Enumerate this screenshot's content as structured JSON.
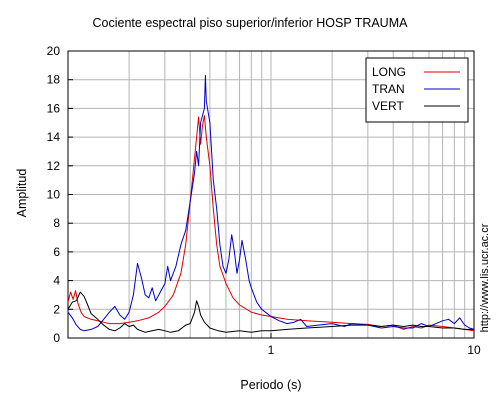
{
  "chart_data": {
    "type": "line",
    "title": "Cociente espectral piso superior/inferior  HOSP TRAUMA",
    "xlabel": "Periodo (s)",
    "ylabel": "Amplitud",
    "xscale": "log",
    "xlim": [
      0.1,
      10
    ],
    "ylim": [
      0,
      20
    ],
    "x_ticks": [
      {
        "value": 1,
        "label": "1"
      },
      {
        "value": 10,
        "label": "10"
      }
    ],
    "y_ticks": [
      0,
      2,
      4,
      6,
      8,
      10,
      12,
      14,
      16,
      18,
      20
    ],
    "grid": true,
    "legend_position": "top-right",
    "credit": "http://www.lis.ucr.ac.cr",
    "series": [
      {
        "name": "LONG",
        "color": "#e00000",
        "points": [
          [
            0.1,
            2.5
          ],
          [
            0.103,
            3.2
          ],
          [
            0.106,
            2.7
          ],
          [
            0.109,
            3.3
          ],
          [
            0.112,
            2.4
          ],
          [
            0.116,
            1.8
          ],
          [
            0.12,
            1.5
          ],
          [
            0.13,
            1.3
          ],
          [
            0.14,
            1.2
          ],
          [
            0.15,
            1.1
          ],
          [
            0.16,
            1.0
          ],
          [
            0.18,
            1.0
          ],
          [
            0.2,
            1.1
          ],
          [
            0.22,
            1.2
          ],
          [
            0.25,
            1.4
          ],
          [
            0.28,
            1.8
          ],
          [
            0.3,
            2.2
          ],
          [
            0.33,
            3.0
          ],
          [
            0.36,
            4.5
          ],
          [
            0.38,
            6.5
          ],
          [
            0.4,
            9.5
          ],
          [
            0.42,
            12.5
          ],
          [
            0.44,
            15.4
          ],
          [
            0.45,
            13.5
          ],
          [
            0.46,
            14.8
          ],
          [
            0.47,
            15.5
          ],
          [
            0.48,
            14.0
          ],
          [
            0.5,
            12.0
          ],
          [
            0.52,
            9.0
          ],
          [
            0.54,
            6.5
          ],
          [
            0.56,
            5.0
          ],
          [
            0.6,
            3.8
          ],
          [
            0.65,
            2.8
          ],
          [
            0.7,
            2.3
          ],
          [
            0.8,
            1.8
          ],
          [
            0.9,
            1.6
          ],
          [
            1.0,
            1.5
          ],
          [
            1.2,
            1.3
          ],
          [
            1.5,
            1.2
          ],
          [
            2.0,
            1.1
          ],
          [
            2.5,
            1.0
          ],
          [
            3.0,
            0.95
          ],
          [
            3.5,
            0.8
          ],
          [
            4.0,
            0.9
          ],
          [
            4.5,
            0.6
          ],
          [
            5.0,
            0.8
          ],
          [
            5.5,
            0.7
          ],
          [
            6.0,
            0.9
          ],
          [
            7.0,
            0.8
          ],
          [
            8.0,
            0.7
          ],
          [
            9.0,
            0.6
          ],
          [
            10.0,
            0.5
          ]
        ]
      },
      {
        "name": "TRAN",
        "color": "#0000cc",
        "points": [
          [
            0.1,
            1.8
          ],
          [
            0.105,
            1.4
          ],
          [
            0.11,
            0.9
          ],
          [
            0.115,
            0.6
          ],
          [
            0.12,
            0.5
          ],
          [
            0.13,
            0.6
          ],
          [
            0.14,
            0.8
          ],
          [
            0.15,
            1.3
          ],
          [
            0.16,
            1.8
          ],
          [
            0.17,
            2.2
          ],
          [
            0.18,
            1.6
          ],
          [
            0.19,
            1.3
          ],
          [
            0.2,
            1.8
          ],
          [
            0.21,
            3.0
          ],
          [
            0.22,
            5.2
          ],
          [
            0.23,
            4.2
          ],
          [
            0.24,
            3.0
          ],
          [
            0.25,
            2.8
          ],
          [
            0.26,
            3.5
          ],
          [
            0.27,
            2.6
          ],
          [
            0.28,
            3.0
          ],
          [
            0.3,
            3.8
          ],
          [
            0.31,
            5.0
          ],
          [
            0.32,
            4.0
          ],
          [
            0.34,
            5.0
          ],
          [
            0.36,
            6.5
          ],
          [
            0.38,
            7.5
          ],
          [
            0.4,
            9.5
          ],
          [
            0.42,
            11.5
          ],
          [
            0.43,
            13.0
          ],
          [
            0.44,
            12.0
          ],
          [
            0.45,
            15.0
          ],
          [
            0.46,
            15.5
          ],
          [
            0.47,
            16.0
          ],
          [
            0.475,
            18.3
          ],
          [
            0.48,
            16.5
          ],
          [
            0.5,
            15.0
          ],
          [
            0.51,
            13.0
          ],
          [
            0.52,
            11.0
          ],
          [
            0.54,
            9.0
          ],
          [
            0.56,
            6.5
          ],
          [
            0.58,
            5.0
          ],
          [
            0.6,
            4.5
          ],
          [
            0.62,
            5.5
          ],
          [
            0.64,
            7.2
          ],
          [
            0.66,
            6.0
          ],
          [
            0.68,
            4.5
          ],
          [
            0.7,
            5.5
          ],
          [
            0.72,
            6.8
          ],
          [
            0.75,
            5.5
          ],
          [
            0.78,
            4.0
          ],
          [
            0.8,
            3.5
          ],
          [
            0.85,
            2.5
          ],
          [
            0.9,
            2.0
          ],
          [
            1.0,
            1.5
          ],
          [
            1.1,
            1.2
          ],
          [
            1.2,
            1.0
          ],
          [
            1.3,
            1.1
          ],
          [
            1.4,
            1.3
          ],
          [
            1.5,
            0.8
          ],
          [
            1.7,
            0.9
          ],
          [
            2.0,
            1.0
          ],
          [
            2.3,
            0.8
          ],
          [
            2.5,
            1.0
          ],
          [
            3.0,
            0.9
          ],
          [
            3.5,
            0.7
          ],
          [
            4.0,
            0.8
          ],
          [
            4.5,
            0.7
          ],
          [
            5.0,
            0.7
          ],
          [
            5.5,
            1.0
          ],
          [
            6.0,
            0.8
          ],
          [
            6.5,
            1.0
          ],
          [
            7.0,
            1.2
          ],
          [
            7.5,
            1.3
          ],
          [
            8.0,
            1.0
          ],
          [
            8.5,
            1.4
          ],
          [
            9.0,
            0.9
          ],
          [
            9.5,
            0.7
          ],
          [
            10.0,
            0.6
          ]
        ]
      },
      {
        "name": "VERT",
        "color": "#000000",
        "points": [
          [
            0.1,
            2.0
          ],
          [
            0.105,
            2.5
          ],
          [
            0.11,
            2.6
          ],
          [
            0.115,
            3.2
          ],
          [
            0.12,
            2.9
          ],
          [
            0.125,
            2.3
          ],
          [
            0.13,
            1.7
          ],
          [
            0.14,
            1.3
          ],
          [
            0.15,
            0.9
          ],
          [
            0.16,
            0.6
          ],
          [
            0.17,
            0.5
          ],
          [
            0.18,
            0.7
          ],
          [
            0.19,
            1.0
          ],
          [
            0.2,
            0.8
          ],
          [
            0.21,
            0.9
          ],
          [
            0.22,
            0.6
          ],
          [
            0.24,
            0.4
          ],
          [
            0.26,
            0.5
          ],
          [
            0.28,
            0.6
          ],
          [
            0.3,
            0.5
          ],
          [
            0.32,
            0.4
          ],
          [
            0.35,
            0.5
          ],
          [
            0.38,
            0.9
          ],
          [
            0.4,
            1.0
          ],
          [
            0.42,
            1.8
          ],
          [
            0.43,
            2.6
          ],
          [
            0.44,
            2.2
          ],
          [
            0.45,
            1.6
          ],
          [
            0.47,
            1.1
          ],
          [
            0.5,
            0.7
          ],
          [
            0.55,
            0.5
          ],
          [
            0.6,
            0.4
          ],
          [
            0.7,
            0.5
          ],
          [
            0.8,
            0.4
          ],
          [
            0.9,
            0.5
          ],
          [
            1.0,
            0.5
          ],
          [
            1.2,
            0.6
          ],
          [
            1.5,
            0.7
          ],
          [
            2.0,
            0.8
          ],
          [
            2.5,
            0.9
          ],
          [
            3.0,
            0.9
          ],
          [
            3.5,
            0.8
          ],
          [
            4.0,
            0.9
          ],
          [
            4.5,
            0.8
          ],
          [
            5.0,
            0.9
          ],
          [
            5.5,
            0.8
          ],
          [
            6.0,
            0.8
          ],
          [
            7.0,
            0.7
          ],
          [
            8.0,
            0.7
          ],
          [
            9.0,
            0.6
          ],
          [
            10.0,
            0.6
          ]
        ]
      }
    ]
  }
}
